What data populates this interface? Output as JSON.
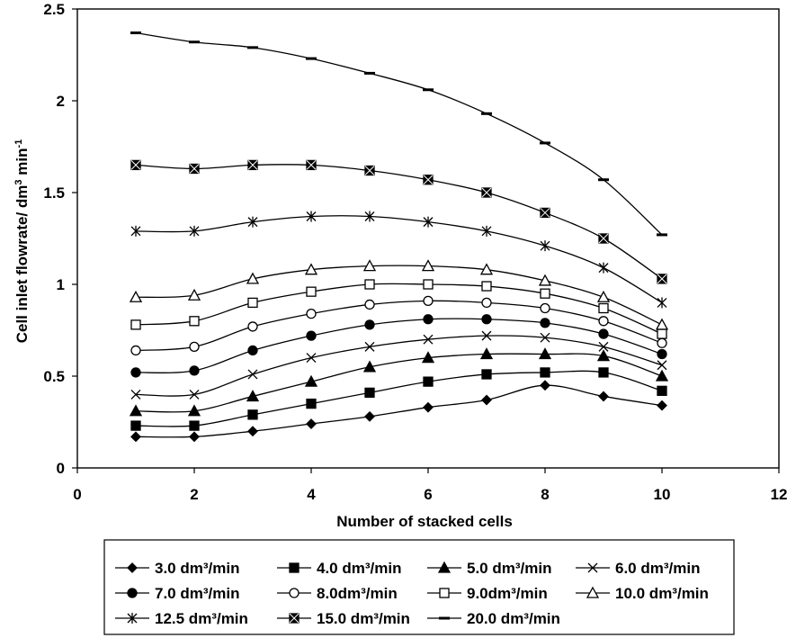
{
  "chart_data": {
    "type": "line",
    "xlabel": "Number of stacked cells",
    "ylabel_main": "Cell inlet flowrate/ dm",
    "ylabel_sup1": "3",
    "ylabel_mid": " min",
    "ylabel_sup2": "-1",
    "xlim": [
      0,
      12
    ],
    "ylim": [
      0,
      2.5
    ],
    "xticks": [
      "0",
      "2",
      "4",
      "6",
      "8",
      "10",
      "12"
    ],
    "yticks": [
      "0",
      "0.5",
      "1",
      "1.5",
      "2",
      "2.5"
    ],
    "grid": false,
    "legend_position": "bottom",
    "x": [
      1,
      2,
      3,
      4,
      5,
      6,
      7,
      8,
      9,
      10
    ],
    "series": [
      {
        "name": "3.0 dm³/min",
        "marker": "diamond",
        "values": [
          0.17,
          0.17,
          0.2,
          0.24,
          0.28,
          0.33,
          0.37,
          0.45,
          0.39,
          0.34
        ]
      },
      {
        "name": "4.0 dm³/min",
        "marker": "square",
        "values": [
          0.23,
          0.23,
          0.29,
          0.35,
          0.41,
          0.47,
          0.51,
          0.52,
          0.52,
          0.42
        ]
      },
      {
        "name": "5.0 dm³/min",
        "marker": "triangle",
        "values": [
          0.31,
          0.31,
          0.39,
          0.47,
          0.55,
          0.6,
          0.62,
          0.62,
          0.61,
          0.5
        ]
      },
      {
        "name": "6.0 dm³/min",
        "marker": "x",
        "values": [
          0.4,
          0.4,
          0.51,
          0.6,
          0.66,
          0.7,
          0.72,
          0.71,
          0.66,
          0.56
        ]
      },
      {
        "name": "7.0 dm³/min",
        "marker": "circle",
        "values": [
          0.52,
          0.53,
          0.64,
          0.72,
          0.78,
          0.81,
          0.81,
          0.79,
          0.73,
          0.62
        ]
      },
      {
        "name": "8.0dm³/min",
        "marker": "circle-open",
        "values": [
          0.64,
          0.66,
          0.77,
          0.84,
          0.89,
          0.91,
          0.9,
          0.87,
          0.8,
          0.68
        ]
      },
      {
        "name": "9.0dm³/min",
        "marker": "square-open",
        "values": [
          0.78,
          0.8,
          0.9,
          0.96,
          1.0,
          1.0,
          0.99,
          0.95,
          0.87,
          0.73
        ]
      },
      {
        "name": "10.0 dm³/min",
        "marker": "triangle-open",
        "values": [
          0.93,
          0.94,
          1.03,
          1.08,
          1.1,
          1.1,
          1.08,
          1.02,
          0.93,
          0.78
        ]
      },
      {
        "name": "12.5 dm³/min",
        "marker": "star",
        "values": [
          1.29,
          1.29,
          1.34,
          1.37,
          1.37,
          1.34,
          1.29,
          1.21,
          1.09,
          0.9
        ]
      },
      {
        "name": "15.0 dm³/min",
        "marker": "square-x",
        "values": [
          1.65,
          1.63,
          1.65,
          1.65,
          1.62,
          1.57,
          1.5,
          1.39,
          1.25,
          1.03
        ]
      },
      {
        "name": "20.0 dm³/min",
        "marker": "dash",
        "values": [
          2.37,
          2.32,
          2.29,
          2.23,
          2.15,
          2.06,
          1.93,
          1.77,
          1.57,
          1.27
        ]
      }
    ]
  }
}
